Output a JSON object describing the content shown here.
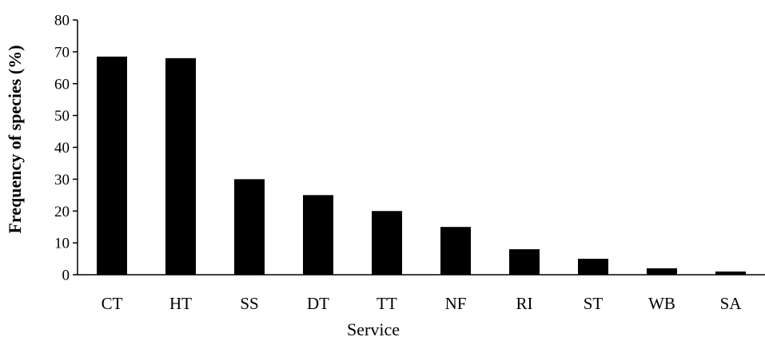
{
  "chart_data": {
    "type": "bar",
    "categories": [
      "CT",
      "HT",
      "SS",
      "DT",
      "TT",
      "NF",
      "RI",
      "ST",
      "WB",
      "SA"
    ],
    "values": [
      68.5,
      68,
      30,
      25,
      20,
      15,
      8,
      5,
      2,
      1
    ],
    "xlabel": "Service",
    "ylabel": "Frequency of species (%)",
    "ylim": [
      0,
      80
    ],
    "yticks": [
      0,
      10,
      20,
      30,
      40,
      50,
      60,
      70,
      80
    ],
    "grid": false,
    "legend": "none",
    "bar_color": "#000000"
  }
}
